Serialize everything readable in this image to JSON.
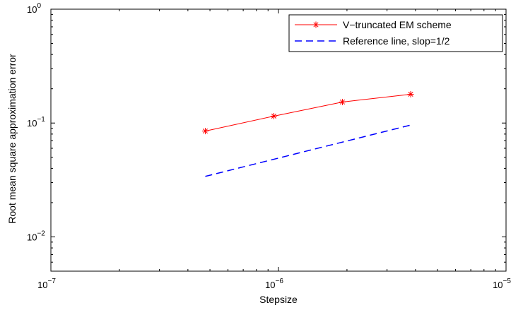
{
  "chart_data": {
    "type": "line",
    "title": "",
    "xlabel": "Stepsize",
    "ylabel": "Root mean square approximation error",
    "xscale": "log",
    "yscale": "log",
    "xlim": [
      1e-07,
      1e-05
    ],
    "ylim": [
      0.005,
      1
    ],
    "grid": false,
    "legend_position": "top-right",
    "x_ticks": [
      {
        "value": 1e-07,
        "base": "10",
        "exp": "−7"
      },
      {
        "value": 1e-06,
        "base": "10",
        "exp": "−6"
      },
      {
        "value": 1e-05,
        "base": "10",
        "exp": "−5"
      }
    ],
    "y_ticks": [
      {
        "value": 0.01,
        "base": "10",
        "exp": "−2"
      },
      {
        "value": 0.1,
        "base": "10",
        "exp": "−1"
      },
      {
        "value": 1,
        "base": "10",
        "exp": "0"
      }
    ],
    "series": [
      {
        "name": "V−truncated EM scheme",
        "color": "#ff0000",
        "line_style": "solid",
        "marker": "asterisk",
        "x": [
          4.77e-07,
          9.54e-07,
          1.91e-06,
          3.81e-06
        ],
        "y": [
          0.085,
          0.115,
          0.153,
          0.179
        ]
      },
      {
        "name": "Reference line, slop=1/2",
        "color": "#0000ff",
        "line_style": "dashed",
        "marker": "none",
        "x": [
          4.77e-07,
          3.81e-06
        ],
        "y": [
          0.034,
          0.096
        ]
      }
    ]
  }
}
